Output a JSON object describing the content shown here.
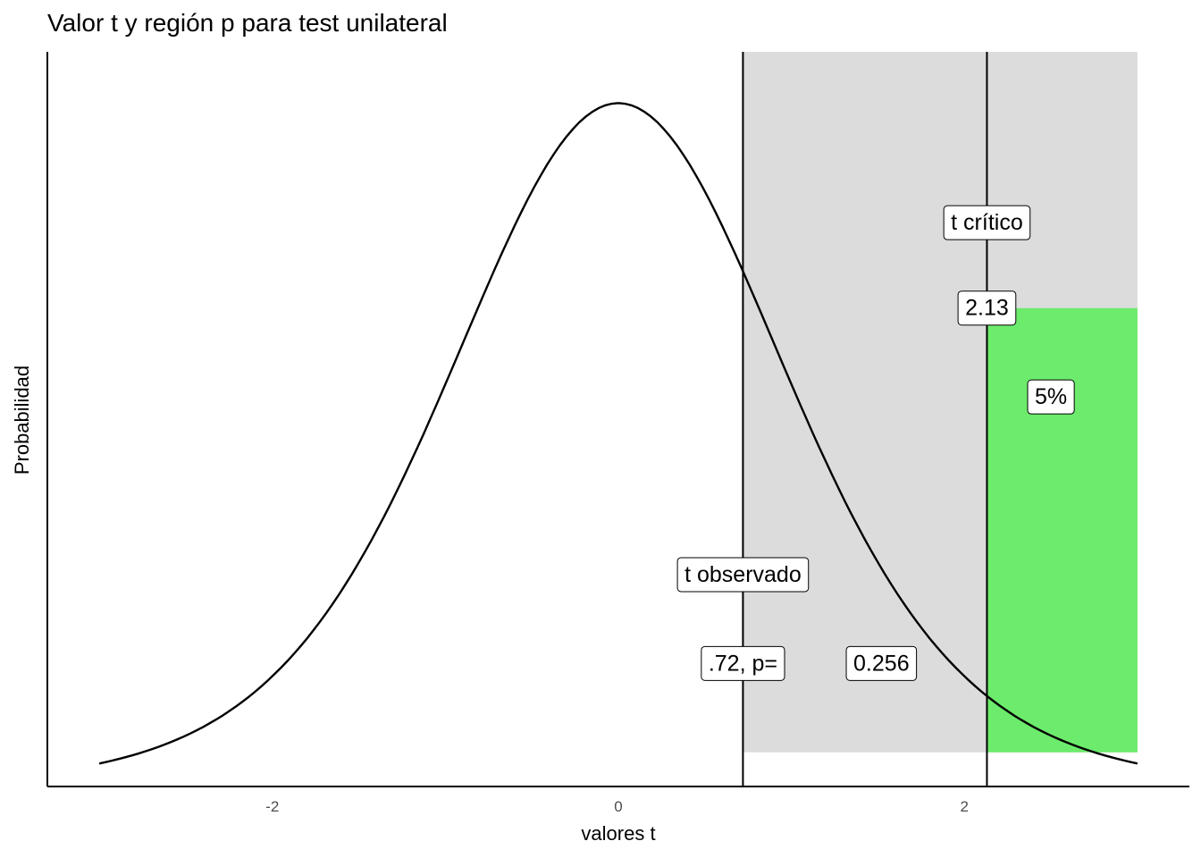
{
  "chart_data": {
    "type": "area",
    "title": "Valor t y región p para test unilateral",
    "xlabel": "valores t",
    "ylabel": "Probabilidad",
    "xlim": [
      -3.3,
      3.3
    ],
    "ylim": [
      0.0,
      0.43
    ],
    "x_ticks": [
      -2,
      0,
      2
    ],
    "x_tick_labels": [
      "-2",
      "0",
      "2"
    ],
    "grid": false,
    "legend": "none",
    "curve": {
      "distribution": "t",
      "x_range": [
        -3.0,
        3.0
      ],
      "peak": 0.4,
      "color": "#000000"
    },
    "t_observed": 0.72,
    "t_critical": 2.13,
    "shaded_regions": [
      {
        "name": "p region",
        "x": [
          0.72,
          3.0
        ],
        "y": [
          0.02,
          0.43
        ],
        "color": "#dcdcdc"
      },
      {
        "name": "5% region",
        "x": [
          2.13,
          3.0
        ],
        "y": [
          0.02,
          0.28
        ],
        "color": "#6ceb6c"
      }
    ],
    "vlines": [
      {
        "x": 0.72,
        "color": "#000000"
      },
      {
        "x": 2.13,
        "color": "#000000"
      }
    ],
    "annotations": [
      {
        "text": "t crítico",
        "x": 2.13,
        "y": 0.33
      },
      {
        "text": "2.13",
        "x": 2.13,
        "y": 0.28
      },
      {
        "text": "5%",
        "x": 2.5,
        "y": 0.228
      },
      {
        "text": "t observado",
        "x": 0.72,
        "y": 0.124
      },
      {
        "text": ".72, p=",
        "x": 0.72,
        "y": 0.072
      },
      {
        "text": "0.256",
        "x": 1.52,
        "y": 0.072
      }
    ]
  }
}
